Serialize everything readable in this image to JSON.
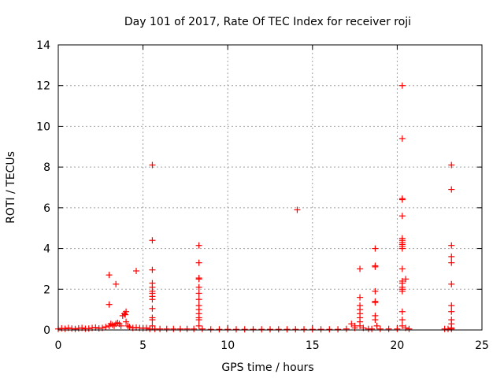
{
  "chart_data": {
    "type": "scatter",
    "title": "Day 101 of 2017, Rate Of TEC Index for receiver roji",
    "xlabel": "GPS time / hours",
    "ylabel": "ROTI / TECUs",
    "xlim": [
      0,
      25
    ],
    "ylim": [
      0,
      14
    ],
    "xticks": [
      "0",
      "5",
      "10",
      "15",
      "20",
      "25"
    ],
    "yticks": [
      "0",
      "2",
      "4",
      "6",
      "8",
      "10",
      "12",
      "14"
    ],
    "grid": true,
    "marker": "plus",
    "color": "#ff0000",
    "x": [
      0.0,
      0.2,
      0.4,
      0.6,
      0.8,
      1.0,
      1.2,
      1.4,
      1.6,
      1.8,
      2.0,
      2.2,
      2.4,
      2.6,
      2.8,
      3.0,
      3.0,
      3.0,
      3.1,
      3.2,
      3.3,
      3.4,
      3.4,
      3.5,
      3.6,
      3.7,
      3.8,
      3.9,
      3.95,
      4.0,
      4.0,
      4.1,
      4.2,
      4.4,
      4.6,
      4.6,
      4.8,
      5.0,
      5.2,
      5.4,
      5.55,
      5.55,
      5.55,
      5.55,
      5.55,
      5.55,
      5.55,
      5.55,
      5.55,
      5.55,
      5.55,
      5.55,
      5.55,
      5.7,
      6.0,
      6.4,
      6.8,
      7.2,
      7.6,
      8.0,
      8.3,
      8.3,
      8.3,
      8.3,
      8.3,
      8.3,
      8.3,
      8.3,
      8.3,
      8.3,
      8.3,
      8.3,
      8.3,
      8.5,
      9.0,
      9.5,
      10.0,
      10.5,
      11.0,
      11.5,
      12.0,
      12.5,
      13.0,
      13.5,
      14.0,
      14.1,
      14.5,
      15.0,
      15.5,
      16.0,
      16.5,
      17.0,
      17.3,
      17.5,
      17.5,
      17.8,
      17.8,
      17.8,
      17.8,
      17.8,
      17.8,
      17.8,
      17.8,
      18.0,
      18.3,
      18.5,
      18.7,
      18.7,
      18.7,
      18.7,
      18.7,
      18.7,
      18.7,
      18.7,
      18.8,
      19.0,
      19.5,
      20.0,
      20.3,
      20.3,
      20.3,
      20.3,
      20.3,
      20.3,
      20.3,
      20.3,
      20.3,
      20.3,
      20.3,
      20.3,
      20.3,
      20.3,
      20.3,
      20.3,
      20.3,
      20.3,
      20.3,
      20.3,
      20.5,
      20.5,
      20.7,
      22.8,
      23.0,
      23.2,
      23.2,
      23.2,
      23.2,
      23.2,
      23.2,
      23.2,
      23.2,
      23.2,
      23.2,
      23.2,
      23.2
    ],
    "y": [
      0.05,
      0.08,
      0.06,
      0.1,
      0.07,
      0.05,
      0.08,
      0.1,
      0.06,
      0.07,
      0.1,
      0.12,
      0.08,
      0.1,
      0.15,
      2.7,
      1.25,
      0.2,
      0.3,
      0.25,
      0.2,
      2.25,
      0.3,
      0.35,
      0.3,
      0.2,
      0.7,
      0.8,
      0.75,
      0.9,
      0.4,
      0.2,
      0.15,
      0.1,
      2.9,
      0.12,
      0.1,
      0.08,
      0.1,
      0.05,
      8.1,
      4.4,
      2.95,
      2.3,
      2.1,
      1.9,
      1.8,
      1.65,
      1.5,
      1.05,
      0.6,
      0.5,
      0.2,
      0.05,
      0.05,
      0.05,
      0.05,
      0.05,
      0.05,
      0.05,
      4.15,
      3.3,
      2.55,
      2.5,
      2.1,
      1.8,
      1.5,
      1.2,
      1.0,
      0.8,
      0.6,
      0.5,
      0.2,
      0.05,
      0.03,
      0.03,
      0.03,
      0.03,
      0.03,
      0.03,
      0.03,
      0.03,
      0.03,
      0.03,
      0.03,
      5.9,
      0.03,
      0.03,
      0.03,
      0.03,
      0.03,
      0.05,
      0.3,
      0.1,
      0.2,
      3.0,
      1.6,
      1.2,
      1.0,
      0.8,
      0.6,
      0.4,
      0.2,
      0.1,
      0.05,
      0.05,
      4.0,
      3.15,
      3.1,
      1.9,
      1.4,
      1.35,
      0.7,
      0.5,
      0.2,
      0.05,
      0.05,
      0.05,
      12.0,
      9.4,
      6.45,
      6.4,
      5.6,
      4.5,
      4.4,
      4.3,
      4.2,
      4.1,
      4.0,
      3.0,
      2.4,
      2.3,
      2.1,
      2.0,
      1.9,
      0.9,
      0.5,
      0.2,
      2.5,
      0.1,
      0.05,
      0.05,
      0.05,
      8.1,
      6.9,
      4.15,
      3.6,
      3.3,
      2.25,
      1.2,
      0.9,
      0.5,
      0.3,
      0.1,
      0.05
    ]
  }
}
